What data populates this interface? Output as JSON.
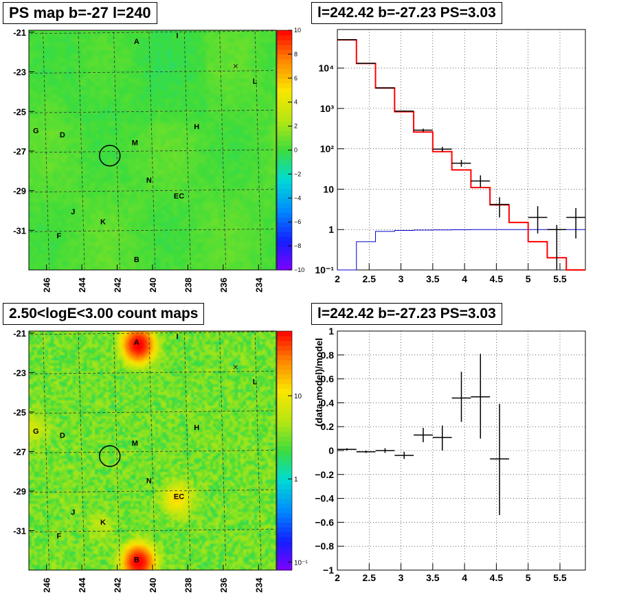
{
  "panels": {
    "ps_map": {
      "title": "PS map b=-27 l=240",
      "x_ticks": [
        246,
        244,
        242,
        240,
        238,
        236,
        234
      ],
      "y_ticks": [
        -21,
        -23,
        -25,
        -27,
        -29,
        -31
      ],
      "colorbar_ticks": [
        "10",
        "8",
        "6",
        "4",
        "2",
        "0",
        "−2",
        "−4",
        "−6",
        "−8",
        "−10"
      ]
    },
    "count_map": {
      "title": "2.50<logE<3.00 count maps",
      "x_ticks": [
        246,
        244,
        242,
        240,
        238,
        236,
        234
      ],
      "y_ticks": [
        -21,
        -23,
        -25,
        -27,
        -29,
        -31
      ],
      "colorbar_ticks": [
        "10",
        "1",
        "10⁻¹"
      ]
    },
    "spectrum": {
      "title": "l=242.42 b=-27.23 PS=3.03"
    },
    "residuals": {
      "title": "l=242.42 b=-27.23 PS=3.03"
    }
  },
  "map_labels": [
    {
      "text": "A",
      "l": 240.9,
      "b": -21.6
    },
    {
      "text": "I",
      "l": 238.6,
      "b": -21.3
    },
    {
      "text": "L",
      "l": 234.2,
      "b": -23.6
    },
    {
      "text": "G",
      "l": 246.6,
      "b": -26.1
    },
    {
      "text": "D",
      "l": 245.1,
      "b": -26.3
    },
    {
      "text": "M",
      "l": 241.0,
      "b": -26.7
    },
    {
      "text": "H",
      "l": 237.5,
      "b": -25.9
    },
    {
      "text": "N",
      "l": 240.2,
      "b": -28.6
    },
    {
      "text": "EC",
      "l": 238.5,
      "b": -29.4
    },
    {
      "text": "J",
      "l": 244.5,
      "b": -30.2
    },
    {
      "text": "K",
      "l": 242.8,
      "b": -30.7
    },
    {
      "text": "F",
      "l": 245.3,
      "b": -31.4
    },
    {
      "text": "B",
      "l": 240.9,
      "b": -32.6
    }
  ],
  "source_circle": {
    "l": 242.42,
    "b": -27.23
  },
  "chart_data": [
    {
      "type": "heatmap",
      "title": "PS map b=-27 l=240",
      "xlim": [
        247,
        233
      ],
      "ylim": [
        -33,
        -20.9
      ],
      "zlim": [
        -10,
        10
      ]
    },
    {
      "type": "bar",
      "title": "l=242.42 b=-27.23 PS=3.03",
      "xlim": [
        2,
        5.9
      ],
      "ylim": [
        0.1,
        90000
      ],
      "yscale": "log",
      "x_ticks": [
        "2",
        "2.5",
        "3",
        "3.5",
        "4",
        "4.5",
        "5",
        "5.5"
      ],
      "y_ticks": [
        {
          "v": 0.1,
          "t": "10⁻¹"
        },
        {
          "v": 1,
          "t": "1"
        },
        {
          "v": 10,
          "t": "10"
        },
        {
          "v": 100,
          "t": "10²"
        },
        {
          "v": 1000,
          "t": "10³"
        },
        {
          "v": 10000,
          "t": "10⁴"
        }
      ],
      "bin_edges": [
        2.0,
        2.3,
        2.6,
        2.9,
        3.2,
        3.5,
        3.8,
        4.1,
        4.4,
        4.7,
        5.0,
        5.3,
        5.6,
        5.9
      ],
      "series": [
        {
          "kind": "model_total",
          "color": "#ff0000",
          "values": [
            50000,
            13000,
            3200,
            830,
            260,
            85,
            30,
            11,
            4.1,
            1.5,
            0.5,
            0.2,
            0.1
          ]
        },
        {
          "kind": "source_model",
          "color": "#0000cc",
          "values": [
            0.1,
            0.5,
            0.9,
            0.95,
            0.97,
            0.98,
            0.99,
            1.0,
            1.0,
            1.0,
            1.0,
            1.0,
            1.0
          ]
        },
        {
          "kind": "data",
          "color": "#000000",
          "x": [
            2.15,
            2.45,
            2.75,
            3.05,
            3.35,
            3.65,
            3.95,
            4.25,
            4.55,
            5.15,
            5.45,
            5.75
          ],
          "y": [
            50500,
            13100,
            3220,
            860,
            290,
            98,
            44,
            16,
            4.2,
            2.0,
            1.0,
            2.0
          ],
          "ylo": [
            50000,
            12900,
            3150,
            830,
            265,
            85,
            36,
            11,
            2.0,
            0.8,
            0.1,
            0.6
          ],
          "yhi": [
            51000,
            13300,
            3300,
            890,
            315,
            112,
            53,
            22,
            6.3,
            3.8,
            1.3,
            3.4
          ]
        }
      ]
    },
    {
      "type": "heatmap",
      "title": "2.50<logE<3.00 count maps",
      "xlim": [
        247,
        233
      ],
      "ylim": [
        -33,
        -20.9
      ],
      "zscale": "log",
      "zlim": [
        0.08,
        60
      ]
    },
    {
      "type": "scatter",
      "title": "l=242.42 b=-27.23 PS=3.03",
      "ylabel": "(data-model)/model",
      "xlim": [
        2,
        5.9
      ],
      "ylim": [
        -1,
        1
      ],
      "x_ticks": [
        "2",
        "2.5",
        "3",
        "3.5",
        "4",
        "4.5",
        "5",
        "5.5"
      ],
      "y_ticks": [
        "−1",
        "−0.8",
        "−0.6",
        "−0.4",
        "−0.2",
        "0",
        "0.2",
        "0.4",
        "0.6",
        "0.8",
        "1"
      ],
      "points": [
        {
          "x": 2.15,
          "y": 0.01,
          "xerr": 0.15,
          "ylo": 0.0,
          "yhi": 0.02
        },
        {
          "x": 2.45,
          "y": -0.01,
          "xerr": 0.15,
          "ylo": -0.02,
          "yhi": 0.0
        },
        {
          "x": 2.75,
          "y": 0.0,
          "xerr": 0.15,
          "ylo": -0.02,
          "yhi": 0.02
        },
        {
          "x": 3.05,
          "y": -0.04,
          "xerr": 0.15,
          "ylo": -0.07,
          "yhi": -0.01
        },
        {
          "x": 3.35,
          "y": 0.13,
          "xerr": 0.15,
          "ylo": 0.07,
          "yhi": 0.19
        },
        {
          "x": 3.65,
          "y": 0.11,
          "xerr": 0.15,
          "ylo": 0.0,
          "yhi": 0.21
        },
        {
          "x": 3.95,
          "y": 0.44,
          "xerr": 0.15,
          "ylo": 0.24,
          "yhi": 0.66
        },
        {
          "x": 4.25,
          "y": 0.45,
          "xerr": 0.15,
          "ylo": 0.1,
          "yhi": 0.81
        },
        {
          "x": 4.55,
          "y": -0.07,
          "xerr": 0.15,
          "ylo": -0.54,
          "yhi": 0.39
        }
      ]
    }
  ]
}
